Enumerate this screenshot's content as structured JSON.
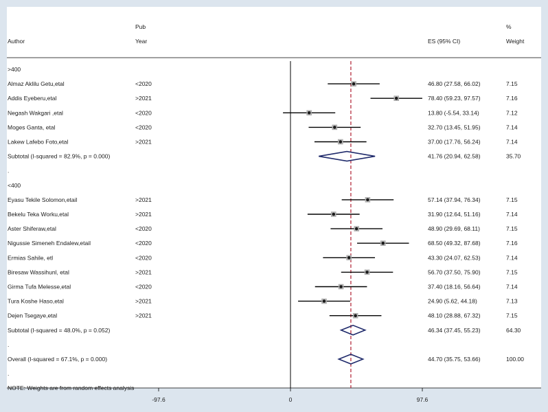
{
  "chart_data": {
    "type": "forest",
    "headers": {
      "author": "Author",
      "pub_line1": "Pub",
      "pub_line2": "Year",
      "es": "ES (95% CI)",
      "weight_line1": "%",
      "weight_line2": "Weight"
    },
    "x_ticks": [
      {
        "value": -97.6,
        "label": "-97.6"
      },
      {
        "value": 0,
        "label": "0"
      },
      {
        "value": 97.6,
        "label": "97.6"
      }
    ],
    "xlim": [
      -97.6,
      97.6
    ],
    "overall_line": 44.7,
    "groups": [
      {
        "label": ">400",
        "studies": [
          {
            "author": "Almaz Aklilu Getu,etal",
            "year": "<2020",
            "es": 46.8,
            "lo": 27.58,
            "hi": 66.02,
            "es_text": "46.80 (27.58, 66.02)",
            "weight": "7.15"
          },
          {
            "author": "Addis Eyeberu,etal",
            "year": ">2021",
            "es": 78.4,
            "lo": 59.23,
            "hi": 97.57,
            "es_text": "78.40 (59.23, 97.57)",
            "weight": "7.16"
          },
          {
            "author": "Negash Wakgari ,etal",
            "year": "<2020",
            "es": 13.8,
            "lo": -5.54,
            "hi": 33.14,
            "es_text": "13.80 (-5.54, 33.14)",
            "weight": "7.12"
          },
          {
            "author": "Moges Ganta, etal",
            "year": "<2020",
            "es": 32.7,
            "lo": 13.45,
            "hi": 51.95,
            "es_text": "32.70 (13.45, 51.95)",
            "weight": "7.14"
          },
          {
            "author": "Lakew Lafebo Foto,etal",
            "year": ">2021",
            "es": 37.0,
            "lo": 17.76,
            "hi": 56.24,
            "es_text": "37.00 (17.76, 56.24)",
            "weight": "7.14"
          }
        ],
        "subtotal": {
          "label": "Subtotal  (I-squared = 82.9%, p = 0.000)",
          "es": 41.76,
          "lo": 20.94,
          "hi": 62.58,
          "es_text": "41.76 (20.94, 62.58)",
          "weight": "35.70"
        }
      },
      {
        "label": "<400",
        "studies": [
          {
            "author": "Eyasu Tekile Solomon,etail",
            "year": ">2021",
            "es": 57.14,
            "lo": 37.94,
            "hi": 76.34,
            "es_text": "57.14 (37.94, 76.34)",
            "weight": "7.15"
          },
          {
            "author": "Bekelu Teka Worku,etal",
            "year": ">2021",
            "es": 31.9,
            "lo": 12.64,
            "hi": 51.16,
            "es_text": "31.90 (12.64, 51.16)",
            "weight": "7.14"
          },
          {
            "author": "Aster Shiferaw,etal",
            "year": "<2020",
            "es": 48.9,
            "lo": 29.69,
            "hi": 68.11,
            "es_text": "48.90 (29.69, 68.11)",
            "weight": "7.15"
          },
          {
            "author": "Nigussie Simeneh Endalew,etail",
            "year": "<2020",
            "es": 68.5,
            "lo": 49.32,
            "hi": 87.68,
            "es_text": "68.50 (49.32, 87.68)",
            "weight": "7.16"
          },
          {
            "author": "Ermias Sahile, etl",
            "year": "<2020",
            "es": 43.3,
            "lo": 24.07,
            "hi": 62.53,
            "es_text": "43.30 (24.07, 62.53)",
            "weight": "7.14"
          },
          {
            "author": "Biresaw Wassihunl, etal",
            "year": ">2021",
            "es": 56.7,
            "lo": 37.5,
            "hi": 75.9,
            "es_text": "56.70 (37.50, 75.90)",
            "weight": "7.15"
          },
          {
            "author": "Girma Tufa Melesse,etal",
            "year": "<2020",
            "es": 37.4,
            "lo": 18.16,
            "hi": 56.64,
            "es_text": "37.40 (18.16, 56.64)",
            "weight": "7.14"
          },
          {
            "author": "Tura Koshe Haso,etal",
            "year": ">2021",
            "es": 24.9,
            "lo": 5.62,
            "hi": 44.18,
            "es_text": "24.90 (5.62, 44.18)",
            "weight": "7.13"
          },
          {
            "author": "Dejen Tsegaye,etal",
            "year": ">2021",
            "es": 48.1,
            "lo": 28.88,
            "hi": 67.32,
            "es_text": "48.10 (28.88, 67.32)",
            "weight": "7.15"
          }
        ],
        "subtotal": {
          "label": "Subtotal  (I-squared = 48.0%, p = 0.052)",
          "es": 46.34,
          "lo": 37.45,
          "hi": 55.23,
          "es_text": "46.34 (37.45, 55.23)",
          "weight": "64.30"
        }
      }
    ],
    "overall": {
      "label": "Overall  (I-squared = 67.1%, p = 0.000)",
      "es": 44.7,
      "lo": 35.75,
      "hi": 53.66,
      "es_text": "44.70 (35.75, 53.66)",
      "weight": "100.00"
    },
    "note": "NOTE: Weights are from random effects analysis",
    "colors": {
      "diamond": "#1f2a6b",
      "overall_line": "#b01c2e",
      "point": "#555555"
    }
  }
}
